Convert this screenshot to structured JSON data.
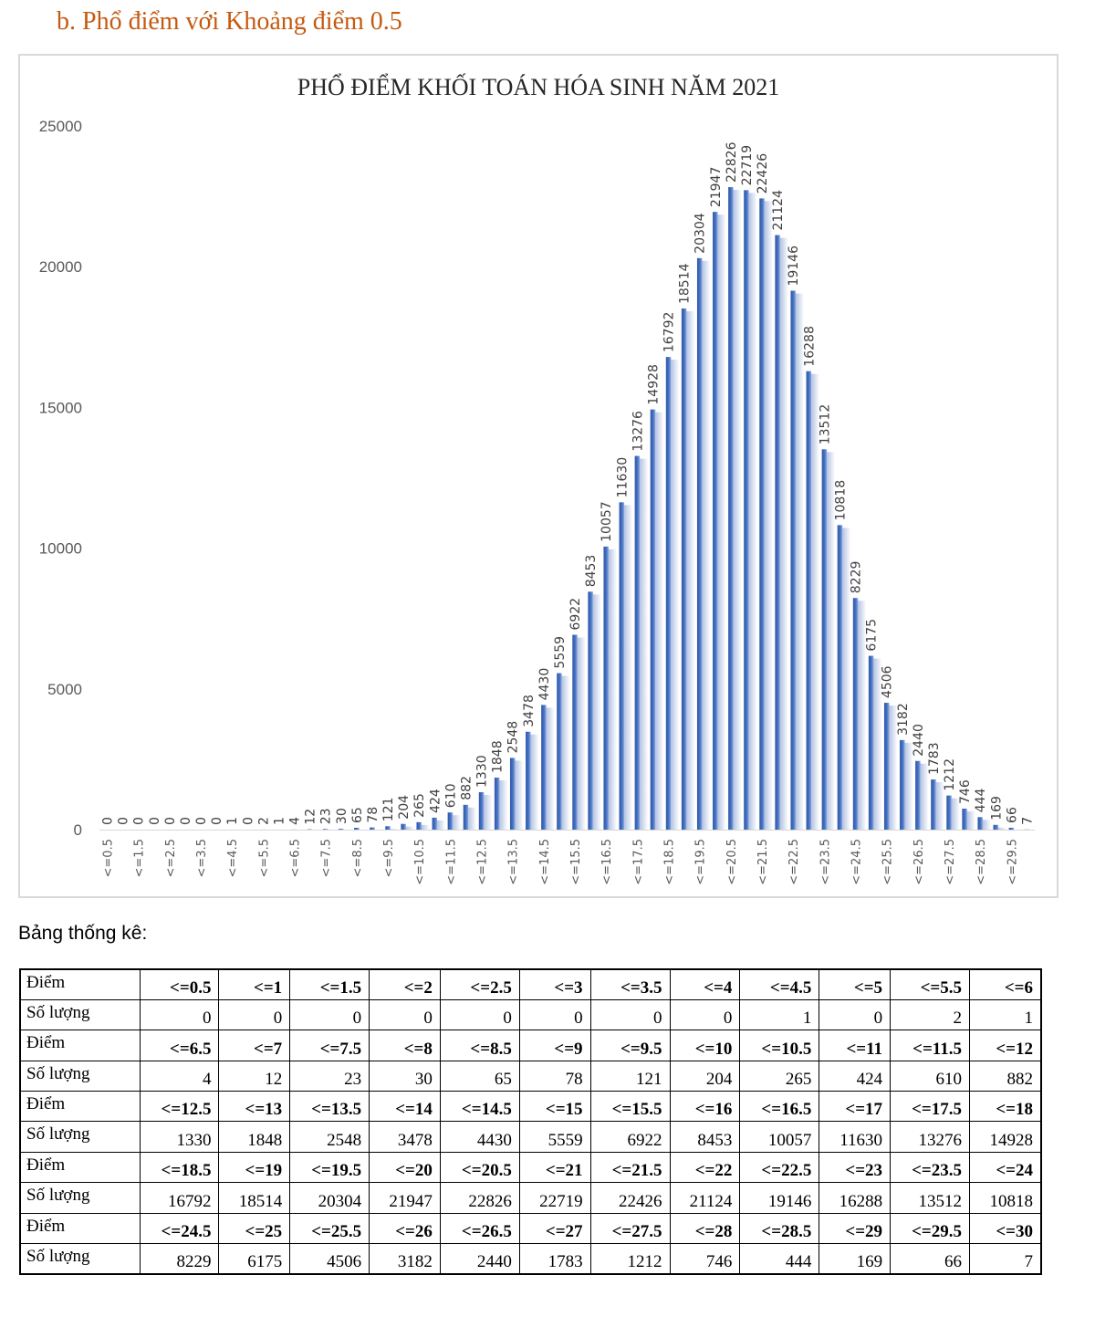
{
  "heading": "b.  Phổ điểm với Khoảng điểm 0.5",
  "chart_data": {
    "type": "bar",
    "title": "PHỔ ĐIỂM KHỐI TOÁN HÓA SINH NĂM 2021",
    "xlabel": "",
    "ylabel": "",
    "ylim": [
      0,
      25000
    ],
    "yticks": [
      "0",
      "5000",
      "10000",
      "15000",
      "20000",
      "25000"
    ],
    "categories": [
      "<=0.5",
      "<=1",
      "<=1.5",
      "<=2",
      "<=2.5",
      "<=3",
      "<=3.5",
      "<=4",
      "<=4.5",
      "<=5",
      "<=5.5",
      "<=6",
      "<=6.5",
      "<=7",
      "<=7.5",
      "<=8",
      "<=8.5",
      "<=9",
      "<=9.5",
      "<=10",
      "<=10.5",
      "<=11",
      "<=11.5",
      "<=12",
      "<=12.5",
      "<=13",
      "<=13.5",
      "<=14",
      "<=14.5",
      "<=15",
      "<=15.5",
      "<=16",
      "<=16.5",
      "<=17",
      "<=17.5",
      "<=18",
      "<=18.5",
      "<=19",
      "<=19.5",
      "<=20",
      "<=20.5",
      "<=21",
      "<=21.5",
      "<=22",
      "<=22.5",
      "<=23",
      "<=23.5",
      "<=24",
      "<=24.5",
      "<=25",
      "<=25.5",
      "<=26",
      "<=26.5",
      "<=27",
      "<=27.5",
      "<=28",
      "<=28.5",
      "<=29",
      "<=29.5",
      "<=30"
    ],
    "values": [
      0,
      0,
      0,
      0,
      0,
      0,
      0,
      0,
      1,
      0,
      2,
      1,
      4,
      12,
      23,
      30,
      65,
      78,
      121,
      204,
      265,
      424,
      610,
      882,
      1330,
      1848,
      2548,
      3478,
      4430,
      5559,
      6922,
      8453,
      10057,
      11630,
      13276,
      14928,
      16792,
      18514,
      20304,
      21947,
      22826,
      22719,
      22426,
      21124,
      19146,
      16288,
      13512,
      10818,
      8229,
      6175,
      4506,
      3182,
      2440,
      1783,
      1212,
      746,
      444,
      169,
      66,
      7
    ],
    "bar_color": "#4472c4",
    "grid": false,
    "legend": "none"
  },
  "stats": {
    "label": "Bảng thống kê:",
    "row_score_label": "Điểm",
    "row_count_label": "Số lượng",
    "rows": [
      {
        "scores": [
          "<=0.5",
          "<=1",
          "<=1.5",
          "<=2",
          "<=2.5",
          "<=3",
          "<=3.5",
          "<=4",
          "<=4.5",
          "<=5",
          "<=5.5",
          "<=6"
        ],
        "counts": [
          "0",
          "0",
          "0",
          "0",
          "0",
          "0",
          "0",
          "0",
          "1",
          "0",
          "2",
          "1"
        ]
      },
      {
        "scores": [
          "<=6.5",
          "<=7",
          "<=7.5",
          "<=8",
          "<=8.5",
          "<=9",
          "<=9.5",
          "<=10",
          "<=10.5",
          "<=11",
          "<=11.5",
          "<=12"
        ],
        "counts": [
          "4",
          "12",
          "23",
          "30",
          "65",
          "78",
          "121",
          "204",
          "265",
          "424",
          "610",
          "882"
        ]
      },
      {
        "scores": [
          "<=12.5",
          "<=13",
          "<=13.5",
          "<=14",
          "<=14.5",
          "<=15",
          "<=15.5",
          "<=16",
          "<=16.5",
          "<=17",
          "<=17.5",
          "<=18"
        ],
        "counts": [
          "1330",
          "1848",
          "2548",
          "3478",
          "4430",
          "5559",
          "6922",
          "8453",
          "10057",
          "11630",
          "13276",
          "14928"
        ]
      },
      {
        "scores": [
          "<=18.5",
          "<=19",
          "<=19.5",
          "<=20",
          "<=20.5",
          "<=21",
          "<=21.5",
          "<=22",
          "<=22.5",
          "<=23",
          "<=23.5",
          "<=24"
        ],
        "counts": [
          "16792",
          "18514",
          "20304",
          "21947",
          "22826",
          "22719",
          "22426",
          "21124",
          "19146",
          "16288",
          "13512",
          "10818"
        ]
      },
      {
        "scores": [
          "<=24.5",
          "<=25",
          "<=25.5",
          "<=26",
          "<=26.5",
          "<=27",
          "<=27.5",
          "<=28",
          "<=28.5",
          "<=29",
          "<=29.5",
          "<=30"
        ],
        "counts": [
          "8229",
          "6175",
          "4506",
          "3182",
          "2440",
          "1783",
          "1212",
          "746",
          "444",
          "169",
          "66",
          "7"
        ]
      }
    ]
  }
}
